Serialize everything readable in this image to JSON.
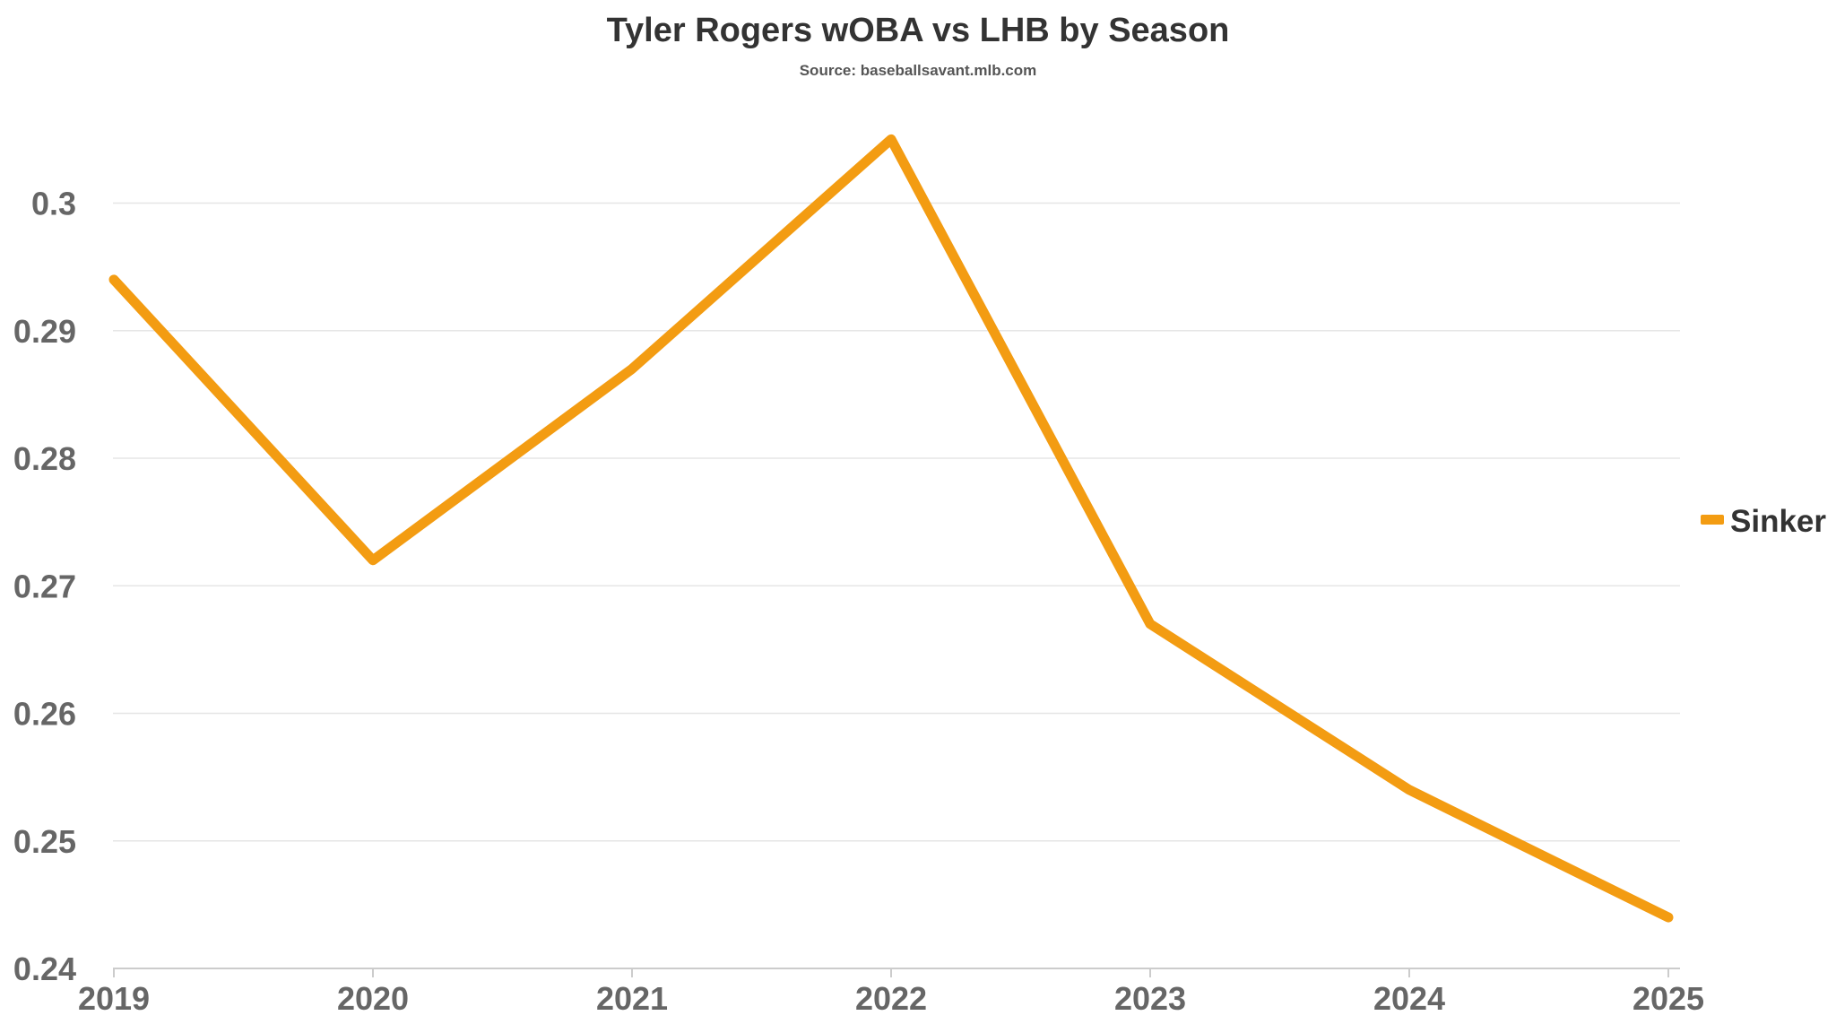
{
  "chart_data": {
    "type": "line",
    "title": "Tyler Rogers wOBA vs LHB by Season",
    "subtitle": "Source: baseballsavant.mlb.com",
    "xlabel": "",
    "ylabel": "",
    "categories": [
      "2019",
      "2020",
      "2021",
      "2022",
      "2023",
      "2024",
      "2025"
    ],
    "series": [
      {
        "name": "Sinker",
        "color": "#f39c12",
        "values": [
          0.294,
          0.272,
          0.287,
          0.305,
          0.267,
          0.254,
          0.244
        ]
      }
    ],
    "ylim": [
      0.24,
      0.3
    ],
    "yticks": [
      0.24,
      0.25,
      0.26,
      0.27,
      0.28,
      0.29,
      0.3
    ],
    "ytick_labels": [
      "0.24",
      "0.25",
      "0.26",
      "0.27",
      "0.28",
      "0.29",
      "0.3"
    ],
    "grid": true,
    "legend_position": "right"
  }
}
